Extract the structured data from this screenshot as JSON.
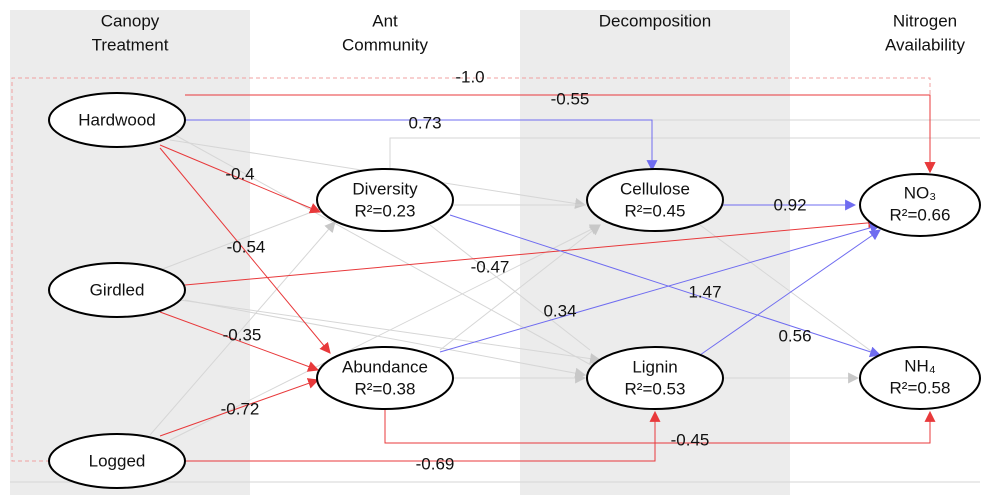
{
  "columns": [
    [
      "Canopy",
      "Treatment"
    ],
    [
      "Ant",
      "Community"
    ],
    [
      "Decomposition"
    ],
    [
      "Nitrogen",
      "Availability"
    ]
  ],
  "nodes": [
    {
      "label": "Hardwood"
    },
    {
      "label": "Girdled"
    },
    {
      "label": "Logged"
    },
    {
      "label": "Diversity",
      "stat": "R²=0.23"
    },
    {
      "label": "Abundance",
      "stat": "R²=0.38"
    },
    {
      "label": "Cellulose",
      "stat": "R²=0.45"
    },
    {
      "label": "Lignin",
      "stat": "R²=0.53"
    },
    {
      "label": "NO₃",
      "stat": "R²=0.66"
    },
    {
      "label": "NH₄",
      "stat": "R²=0.58"
    }
  ],
  "edges": [
    {
      "label": "-1.0"
    },
    {
      "label": "-0.55"
    },
    {
      "label": "0.73"
    },
    {
      "label": "-0.4"
    },
    {
      "label": "-0.54"
    },
    {
      "label": "-0.47"
    },
    {
      "label": "-0.35"
    },
    {
      "label": "0.34"
    },
    {
      "label": "-0.72"
    },
    {
      "label": "1.47"
    },
    {
      "label": "0.92"
    },
    {
      "label": "0.56"
    },
    {
      "label": "-0.45"
    },
    {
      "label": "-0.69"
    }
  ]
}
